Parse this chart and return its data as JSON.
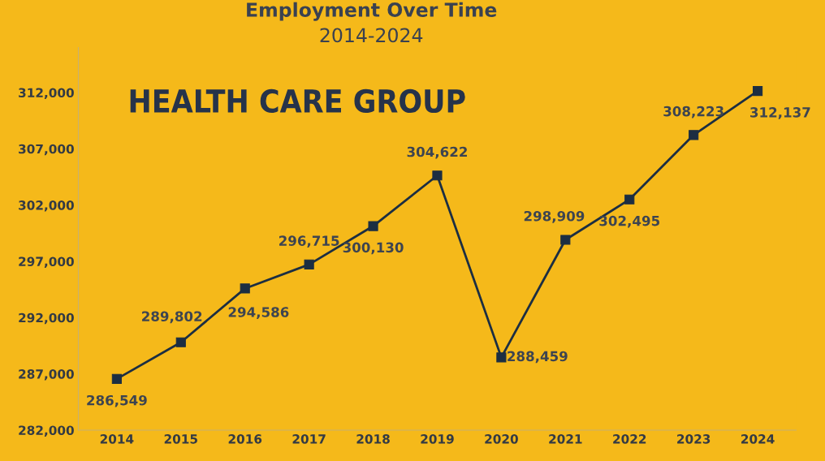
{
  "chart_data": {
    "type": "line",
    "title": "Employment Over Time",
    "subtitle": "2014-2024",
    "annotations": [
      "HEALTH CARE GROUP"
    ],
    "categories": [
      "2014",
      "2015",
      "2016",
      "2017",
      "2018",
      "2019",
      "2020",
      "2021",
      "2022",
      "2023",
      "2024"
    ],
    "series": [
      {
        "color": "#1c2e42",
        "values": [
          286549,
          289802,
          294586,
          296715,
          300130,
          304622,
          288459,
          298909,
          302495,
          308223,
          312137
        ]
      }
    ],
    "ylim": [
      282000,
      316000
    ],
    "yticks": [
      {
        "value": 282000,
        "label": "282,000"
      },
      {
        "value": 287000,
        "label": "287,000"
      },
      {
        "value": 292000,
        "label": "292,000"
      },
      {
        "value": 297000,
        "label": "297,000"
      },
      {
        "value": 302000,
        "label": "302,000"
      },
      {
        "value": 307000,
        "label": "307,000"
      },
      {
        "value": 312000,
        "label": "312,000"
      }
    ],
    "value_labels": [
      "286,549",
      "289,802",
      "294,586",
      "296,715",
      "300,130",
      "304,622",
      "288,459",
      "298,909",
      "302,495",
      "308,223",
      "312,137"
    ],
    "marker": "square",
    "line_style": "solid",
    "grid": false,
    "legend": false
  }
}
